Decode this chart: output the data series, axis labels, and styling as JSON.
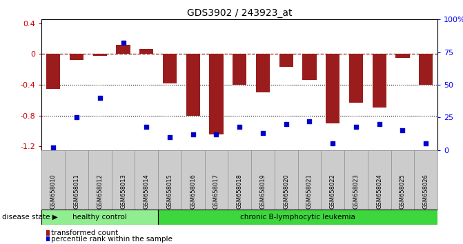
{
  "title": "GDS3902 / 243923_at",
  "samples": [
    "GSM658010",
    "GSM658011",
    "GSM658012",
    "GSM658013",
    "GSM658014",
    "GSM658015",
    "GSM658016",
    "GSM658017",
    "GSM658018",
    "GSM658019",
    "GSM658020",
    "GSM658021",
    "GSM658022",
    "GSM658023",
    "GSM658024",
    "GSM658025",
    "GSM658026"
  ],
  "bar_values": [
    -0.45,
    -0.08,
    -0.02,
    0.12,
    0.07,
    -0.38,
    -0.8,
    -1.05,
    -0.4,
    -0.5,
    -0.17,
    -0.34,
    -0.9,
    -0.63,
    -0.7,
    -0.05,
    -0.4
  ],
  "dot_values": [
    2,
    25,
    40,
    82,
    18,
    10,
    12,
    12,
    18,
    13,
    20,
    22,
    5,
    18,
    20,
    15,
    5
  ],
  "bar_color": "#9B1C1C",
  "dot_color": "#0000CC",
  "ylim": [
    -1.25,
    0.45
  ],
  "y2lim": [
    0,
    100
  ],
  "yticks": [
    -1.2,
    -0.8,
    -0.4,
    0.0,
    0.4
  ],
  "y2ticks": [
    0,
    25,
    50,
    75,
    100
  ],
  "y2ticklabels": [
    "0",
    "25",
    "50",
    "75",
    "100%"
  ],
  "hline_y": 0.0,
  "dotted_lines": [
    -0.4,
    -0.8
  ],
  "healthy_count": 5,
  "disease_state_label": "disease state",
  "healthy_label": "healthy control",
  "leukemia_label": "chronic B-lymphocytic leukemia",
  "legend1": "transformed count",
  "legend2": "percentile rank within the sample",
  "healthy_color": "#90EE90",
  "leukemia_color": "#3DD63D",
  "bg_color": "#FFFFFF",
  "spine_color": "#000000",
  "tick_label_bg": "#CCCCCC"
}
